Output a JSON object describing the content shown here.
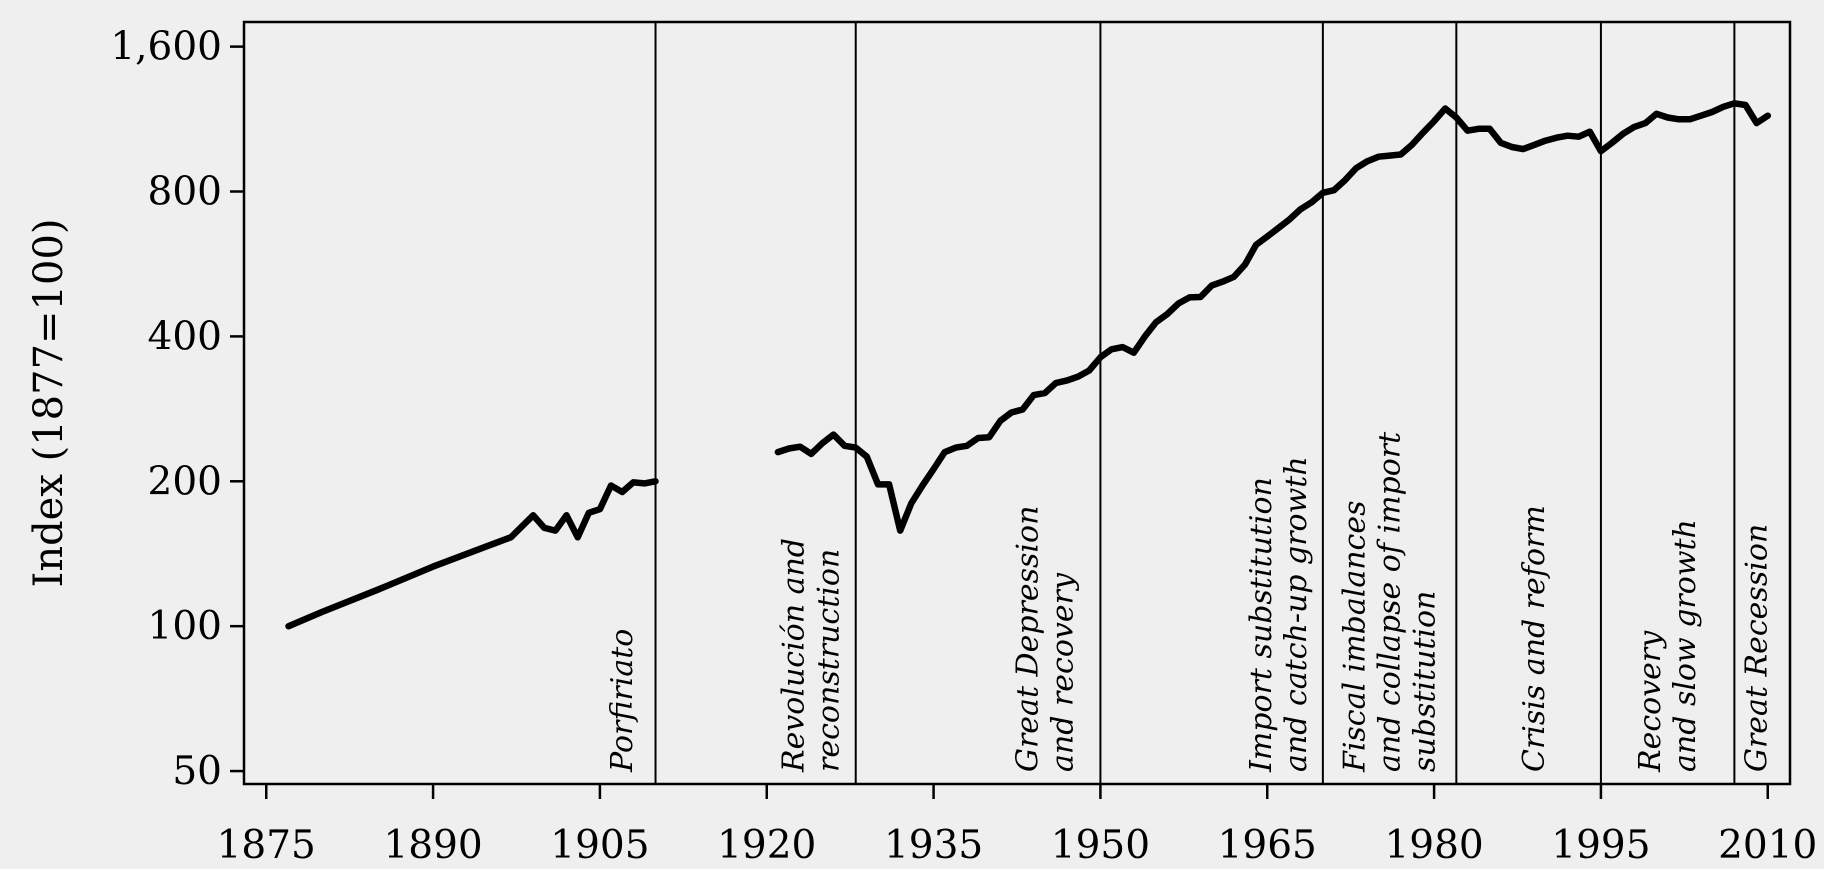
{
  "chart_data": {
    "type": "line",
    "title": "",
    "xlabel": "",
    "ylabel": "Index (1877=100)",
    "y_scale": "log",
    "xlim": [
      1873,
      2012
    ],
    "ylim": [
      47,
      1800
    ],
    "x_ticks": [
      1875,
      1890,
      1905,
      1920,
      1935,
      1950,
      1965,
      1980,
      1995,
      2010
    ],
    "x_tick_labels": [
      "1875",
      "1890",
      "1905",
      "1920",
      "1935",
      "1950",
      "1965",
      "1980",
      "1995",
      "2010"
    ],
    "y_ticks": [
      50,
      100,
      200,
      400,
      800,
      1600
    ],
    "y_tick_labels": [
      "50",
      "100",
      "200",
      "400",
      "800",
      "1,600"
    ],
    "grid": false,
    "period_boundaries": [
      1910,
      1928,
      1950,
      1970,
      1982,
      1995,
      2007
    ],
    "period_labels": [
      {
        "x": 1907,
        "lines": [
          "Porfiriato"
        ]
      },
      {
        "x": 1924,
        "lines": [
          "Revolución and",
          "reconstruction"
        ]
      },
      {
        "x": 1945,
        "lines": [
          "Great Depression",
          "and recovery"
        ]
      },
      {
        "x": 1966,
        "lines": [
          "Import substitution",
          "and catch-up growth"
        ]
      },
      {
        "x": 1976,
        "lines": [
          "Fiscal imbalances",
          "and collapse of import",
          "substitution"
        ]
      },
      {
        "x": 1989,
        "lines": [
          "Crisis and reform"
        ]
      },
      {
        "x": 2001,
        "lines": [
          "Recovery",
          "and slow growth"
        ]
      },
      {
        "x": 2009,
        "lines": [
          "Great Recession"
        ]
      }
    ],
    "series": [
      {
        "segments": [
          [
            [
              1877,
              100
            ],
            [
              1880,
              107
            ],
            [
              1885,
              119
            ],
            [
              1890,
              133
            ],
            [
              1895,
              147
            ],
            [
              1897,
              153
            ],
            [
              1899,
              170
            ],
            [
              1900,
              160
            ],
            [
              1901,
              158
            ],
            [
              1902,
              170
            ],
            [
              1903,
              153
            ],
            [
              1904,
              172
            ],
            [
              1905,
              175
            ],
            [
              1906,
              196
            ],
            [
              1907,
              190
            ],
            [
              1908,
              199
            ],
            [
              1909,
              198
            ],
            [
              1910,
              200
            ]
          ],
          [
            [
              1921,
              230
            ],
            [
              1922,
              234
            ],
            [
              1923,
              236
            ],
            [
              1924,
              228
            ],
            [
              1925,
              240
            ],
            [
              1926,
              250
            ],
            [
              1927,
              237
            ],
            [
              1928,
              235
            ],
            [
              1929,
              225
            ],
            [
              1930,
              197
            ],
            [
              1931,
              197
            ],
            [
              1932,
              158
            ],
            [
              1933,
              180
            ],
            [
              1934,
              196
            ],
            [
              1935,
              212
            ],
            [
              1936,
              230
            ],
            [
              1937,
              235
            ],
            [
              1938,
              237
            ],
            [
              1939,
              246
            ],
            [
              1940,
              247
            ],
            [
              1941,
              267
            ],
            [
              1942,
              278
            ],
            [
              1943,
              282
            ],
            [
              1944,
              302
            ],
            [
              1945,
              305
            ],
            [
              1946,
              320
            ],
            [
              1947,
              324
            ],
            [
              1948,
              330
            ],
            [
              1949,
              340
            ],
            [
              1950,
              362
            ],
            [
              1951,
              376
            ],
            [
              1952,
              380
            ],
            [
              1953,
              370
            ],
            [
              1954,
              400
            ],
            [
              1955,
              428
            ],
            [
              1956,
              445
            ],
            [
              1957,
              468
            ],
            [
              1958,
              482
            ],
            [
              1959,
              483
            ],
            [
              1960,
              510
            ],
            [
              1961,
              520
            ],
            [
              1962,
              532
            ],
            [
              1963,
              564
            ],
            [
              1964,
              620
            ],
            [
              1965,
              645
            ],
            [
              1966,
              672
            ],
            [
              1967,
              700
            ],
            [
              1968,
              735
            ],
            [
              1969,
              760
            ],
            [
              1970,
              795
            ],
            [
              1971,
              805
            ],
            [
              1972,
              845
            ],
            [
              1973,
              895
            ],
            [
              1974,
              925
            ],
            [
              1975,
              945
            ],
            [
              1976,
              950
            ],
            [
              1977,
              955
            ],
            [
              1978,
              1000
            ],
            [
              1979,
              1060
            ],
            [
              1980,
              1120
            ],
            [
              1981,
              1190
            ],
            [
              1982,
              1140
            ],
            [
              1983,
              1070
            ],
            [
              1984,
              1080
            ],
            [
              1985,
              1080
            ],
            [
              1986,
              1010
            ],
            [
              1987,
              990
            ],
            [
              1988,
              980
            ],
            [
              1989,
              1000
            ],
            [
              1990,
              1020
            ],
            [
              1991,
              1035
            ],
            [
              1992,
              1045
            ],
            [
              1993,
              1040
            ],
            [
              1994,
              1065
            ],
            [
              1995,
              970
            ],
            [
              1996,
              1010
            ],
            [
              1997,
              1055
            ],
            [
              1998,
              1090
            ],
            [
              1999,
              1110
            ],
            [
              2000,
              1160
            ],
            [
              2001,
              1140
            ],
            [
              2002,
              1130
            ],
            [
              2003,
              1130
            ],
            [
              2004,
              1150
            ],
            [
              2005,
              1170
            ],
            [
              2006,
              1200
            ],
            [
              2007,
              1220
            ],
            [
              2008,
              1210
            ],
            [
              2009,
              1110
            ],
            [
              2010,
              1150
            ]
          ]
        ]
      }
    ]
  }
}
